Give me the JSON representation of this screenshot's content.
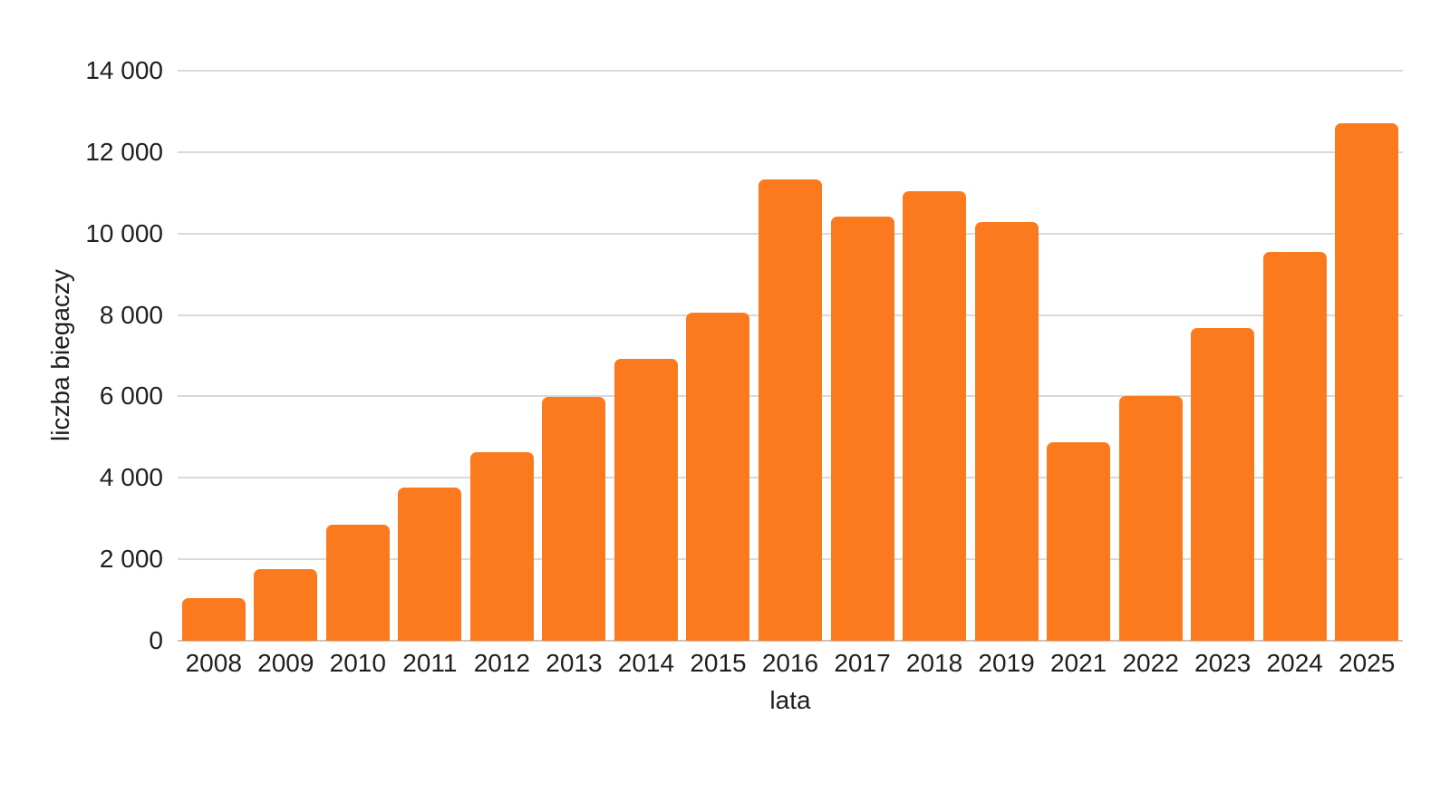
{
  "colors": {
    "bar": "#fb7a1e",
    "gridline": "#d9d9d9",
    "axis_line": "#c4c4c4",
    "text": "#1f1f1f",
    "background": "#ffffff"
  },
  "chart_data": {
    "type": "bar",
    "title": "",
    "xlabel": "lata",
    "ylabel": "liczba biegaczy",
    "categories": [
      "2008",
      "2009",
      "2010",
      "2011",
      "2012",
      "2013",
      "2014",
      "2015",
      "2016",
      "2017",
      "2018",
      "2019",
      "2021",
      "2022",
      "2023",
      "2024",
      "2025"
    ],
    "values": [
      1050,
      1750,
      2850,
      3770,
      4640,
      5980,
      6920,
      8050,
      11340,
      10420,
      11030,
      10280,
      4880,
      6010,
      7680,
      9550,
      12720
    ],
    "ylim": [
      0,
      14000
    ],
    "grid": true,
    "legend_position": "none",
    "y_ticks": [
      {
        "value": 0,
        "label": "0"
      },
      {
        "value": 2000,
        "label": "2 000"
      },
      {
        "value": 4000,
        "label": "4 000"
      },
      {
        "value": 6000,
        "label": "6 000"
      },
      {
        "value": 8000,
        "label": "8 000"
      },
      {
        "value": 10000,
        "label": "10 000"
      },
      {
        "value": 12000,
        "label": "12 000"
      },
      {
        "value": 14000,
        "label": "14 000"
      }
    ]
  }
}
